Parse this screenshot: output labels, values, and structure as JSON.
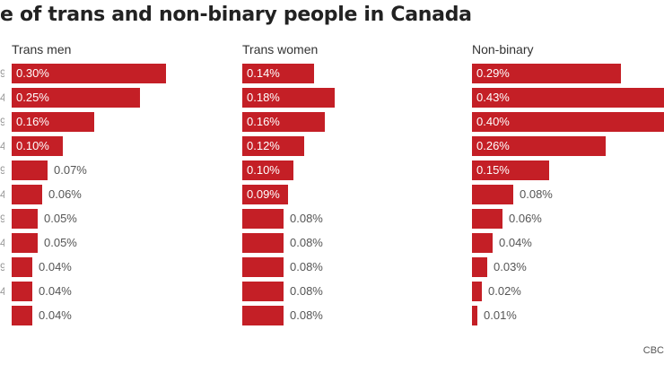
{
  "chart_data": {
    "type": "bar",
    "orientation": "horizontal",
    "title": "e of trans and non-binary people in Canada",
    "source": "CBC",
    "value_suffix": "%",
    "bar_color": "#c41f26",
    "panels": [
      {
        "name": "Trans men",
        "values": [
          0.3,
          0.25,
          0.16,
          0.1,
          0.07,
          0.06,
          0.05,
          0.05,
          0.04,
          0.04,
          0.04
        ],
        "labels": [
          "0.30%",
          "0.25%",
          "0.16%",
          "0.10%",
          "0.07%",
          "0.06%",
          "0.05%",
          "0.05%",
          "0.04%",
          "0.04%",
          "0.04%"
        ]
      },
      {
        "name": "Trans women",
        "values": [
          0.14,
          0.18,
          0.16,
          0.12,
          0.1,
          0.09,
          0.08,
          0.08,
          0.08,
          0.08,
          0.08
        ],
        "labels": [
          "0.14%",
          "0.18%",
          "0.16%",
          "0.12%",
          "0.10%",
          "0.09%",
          "0.08%",
          "0.08%",
          "0.08%",
          "0.08%",
          "0.08%"
        ]
      },
      {
        "name": "Non-binary",
        "values": [
          0.29,
          0.43,
          0.4,
          0.26,
          0.15,
          0.08,
          0.06,
          0.04,
          0.03,
          0.02,
          0.01
        ],
        "labels": [
          "0.29%",
          "0.43%",
          "0.40%",
          "0.26%",
          "0.15%",
          "0.08%",
          "0.06%",
          "0.04%",
          "0.03%",
          "0.02%",
          "0.01%"
        ]
      }
    ],
    "row_label_edges": [
      "9",
      "4",
      "9",
      "4",
      "9",
      "4",
      "9",
      "4",
      "9",
      "4"
    ]
  }
}
